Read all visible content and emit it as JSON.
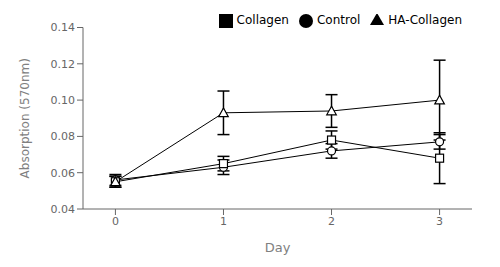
{
  "chart_data": {
    "type": "line",
    "xlabel": "Day",
    "ylabel": "Absorption (570nm)",
    "x": [
      0,
      1,
      2,
      3
    ],
    "xlim": [
      -0.3,
      3.3
    ],
    "xticks": [
      0,
      1,
      2,
      3
    ],
    "ylim": [
      0.04,
      0.14
    ],
    "yticks": [
      0.04,
      0.06,
      0.08,
      {
        "value": 0.1,
        "label": "0.10"
      },
      0.12,
      0.14
    ],
    "grid": false,
    "legend": "upper right",
    "series": [
      {
        "name": "Control",
        "color": "#000000",
        "marker": "circle",
        "line_style": "solid",
        "values": [
          0.056,
          0.063,
          0.072,
          0.077
        ],
        "errors": [
          0.003,
          0.004,
          0.004,
          0.004
        ]
      },
      {
        "name": "Collagen",
        "color": "#000000",
        "marker": "square",
        "line_style": "solid",
        "values": [
          0.055,
          0.065,
          0.078,
          0.068
        ],
        "errors": [
          0.003,
          0.004,
          0.005,
          0.014
        ]
      },
      {
        "name": "HA-Collagen",
        "color": "#000000",
        "marker": "triangle",
        "line_style": "solid",
        "values": [
          0.055,
          0.093,
          0.094,
          0.1
        ],
        "errors": [
          0.003,
          0.012,
          0.009,
          0.022
        ]
      }
    ]
  }
}
